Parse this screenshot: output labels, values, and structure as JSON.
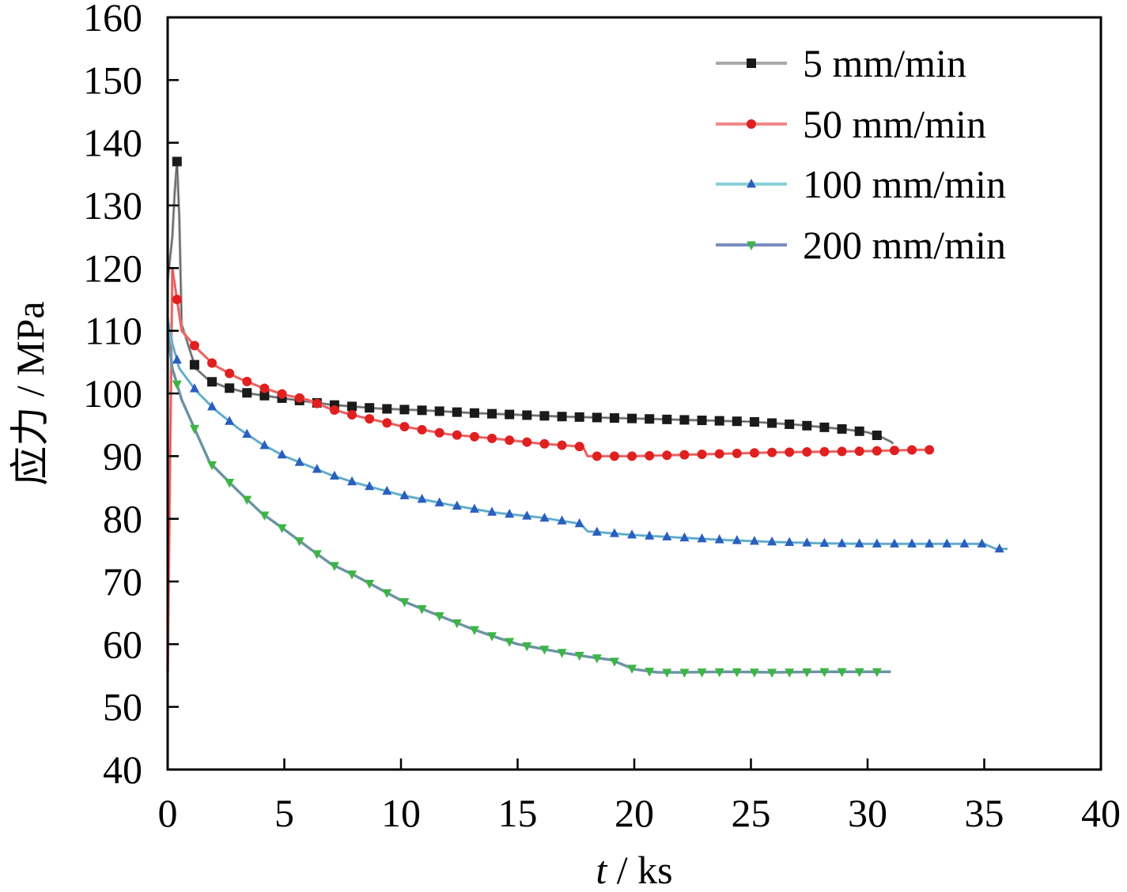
{
  "chart_data": {
    "type": "line",
    "title": "",
    "xlabel_var": "t",
    "xlabel_unit": " / ks",
    "ylabel": "应力 / MPa",
    "xlim": [
      0,
      40
    ],
    "ylim": [
      40,
      160
    ],
    "xticks": [
      "0",
      "5",
      "10",
      "15",
      "20",
      "25",
      "30",
      "35",
      "40"
    ],
    "yticks": [
      "40",
      "50",
      "60",
      "70",
      "80",
      "90",
      "100",
      "110",
      "120",
      "130",
      "140",
      "150",
      "160"
    ],
    "grid": false,
    "legend_position": "top-right",
    "series": [
      {
        "name": "5 mm/min",
        "color": "#1a1a1a",
        "line_color": "#a8a8a8",
        "marker": "square",
        "x": [
          0,
          0.2,
          0.3,
          0.4,
          0.5,
          0.6,
          1.2,
          1.8,
          2.5,
          3.5,
          5,
          7,
          9,
          11,
          13,
          15,
          17,
          19,
          21,
          23,
          25,
          27,
          29,
          30,
          30.5,
          31,
          31.1
        ],
        "y": [
          118,
          125,
          132,
          137,
          128,
          111,
          104,
          102,
          101,
          100,
          99.2,
          98.2,
          97.6,
          97.3,
          96.9,
          96.6,
          96.3,
          96.1,
          95.9,
          95.7,
          95.5,
          95,
          94.3,
          93.8,
          93.2,
          92.3,
          92
        ]
      },
      {
        "name": "50 mm/min",
        "color": "#e02020",
        "line_color": "#f08888",
        "marker": "circle",
        "x": [
          0,
          0.2,
          0.6,
          1.3,
          2,
          3,
          4,
          5,
          6,
          7,
          8,
          10,
          12,
          14,
          16,
          17.8,
          18,
          20,
          22,
          24,
          26,
          28,
          30,
          31,
          32,
          32.8
        ],
        "y": [
          55.5,
          120,
          110,
          107,
          104.5,
          102.5,
          101,
          99.8,
          99,
          97.5,
          96.5,
          94.8,
          93.5,
          92.8,
          92,
          91.5,
          90,
          90,
          90.2,
          90.4,
          90.6,
          90.7,
          90.8,
          90.9,
          91,
          91
        ]
      },
      {
        "name": "100 mm/min",
        "color": "#2a5fbf",
        "line_color": "#8ad0d8",
        "marker": "triangle-up",
        "x": [
          0,
          0.2,
          0.5,
          1.2,
          2,
          3,
          4,
          5,
          6,
          7,
          8,
          10,
          12,
          14,
          16,
          17.7,
          18,
          20,
          22,
          24,
          26,
          28,
          30,
          32,
          34,
          35,
          35.5,
          36
        ],
        "y": [
          112,
          108,
          104,
          100.5,
          97.5,
          94.5,
          92,
          90,
          88.5,
          87,
          85.8,
          83.8,
          82.3,
          81,
          80.2,
          79.2,
          78,
          77.4,
          77,
          76.6,
          76.3,
          76.1,
          76,
          76,
          76,
          76,
          75.2,
          75.2
        ]
      },
      {
        "name": "200 mm/min",
        "color": "#3cb544",
        "line_color": "#7a8cc0",
        "marker": "triangle-down",
        "x": [
          0,
          0.2,
          0.6,
          1.2,
          1.8,
          3,
          4,
          5,
          6,
          7,
          8,
          9,
          10,
          11,
          12,
          13,
          14,
          15,
          16,
          17,
          18,
          19,
          20,
          21,
          22,
          24,
          26,
          28,
          30,
          31
        ],
        "y": [
          110,
          104,
          99,
          94,
          89,
          84.5,
          81,
          78.3,
          75.5,
          72.8,
          71,
          69,
          67,
          65.5,
          64,
          62.5,
          61.2,
          60,
          59.3,
          58.6,
          58,
          57.5,
          56,
          55.5,
          55.5,
          55.6,
          55.5,
          55.6,
          55.6,
          55.6
        ]
      }
    ]
  }
}
